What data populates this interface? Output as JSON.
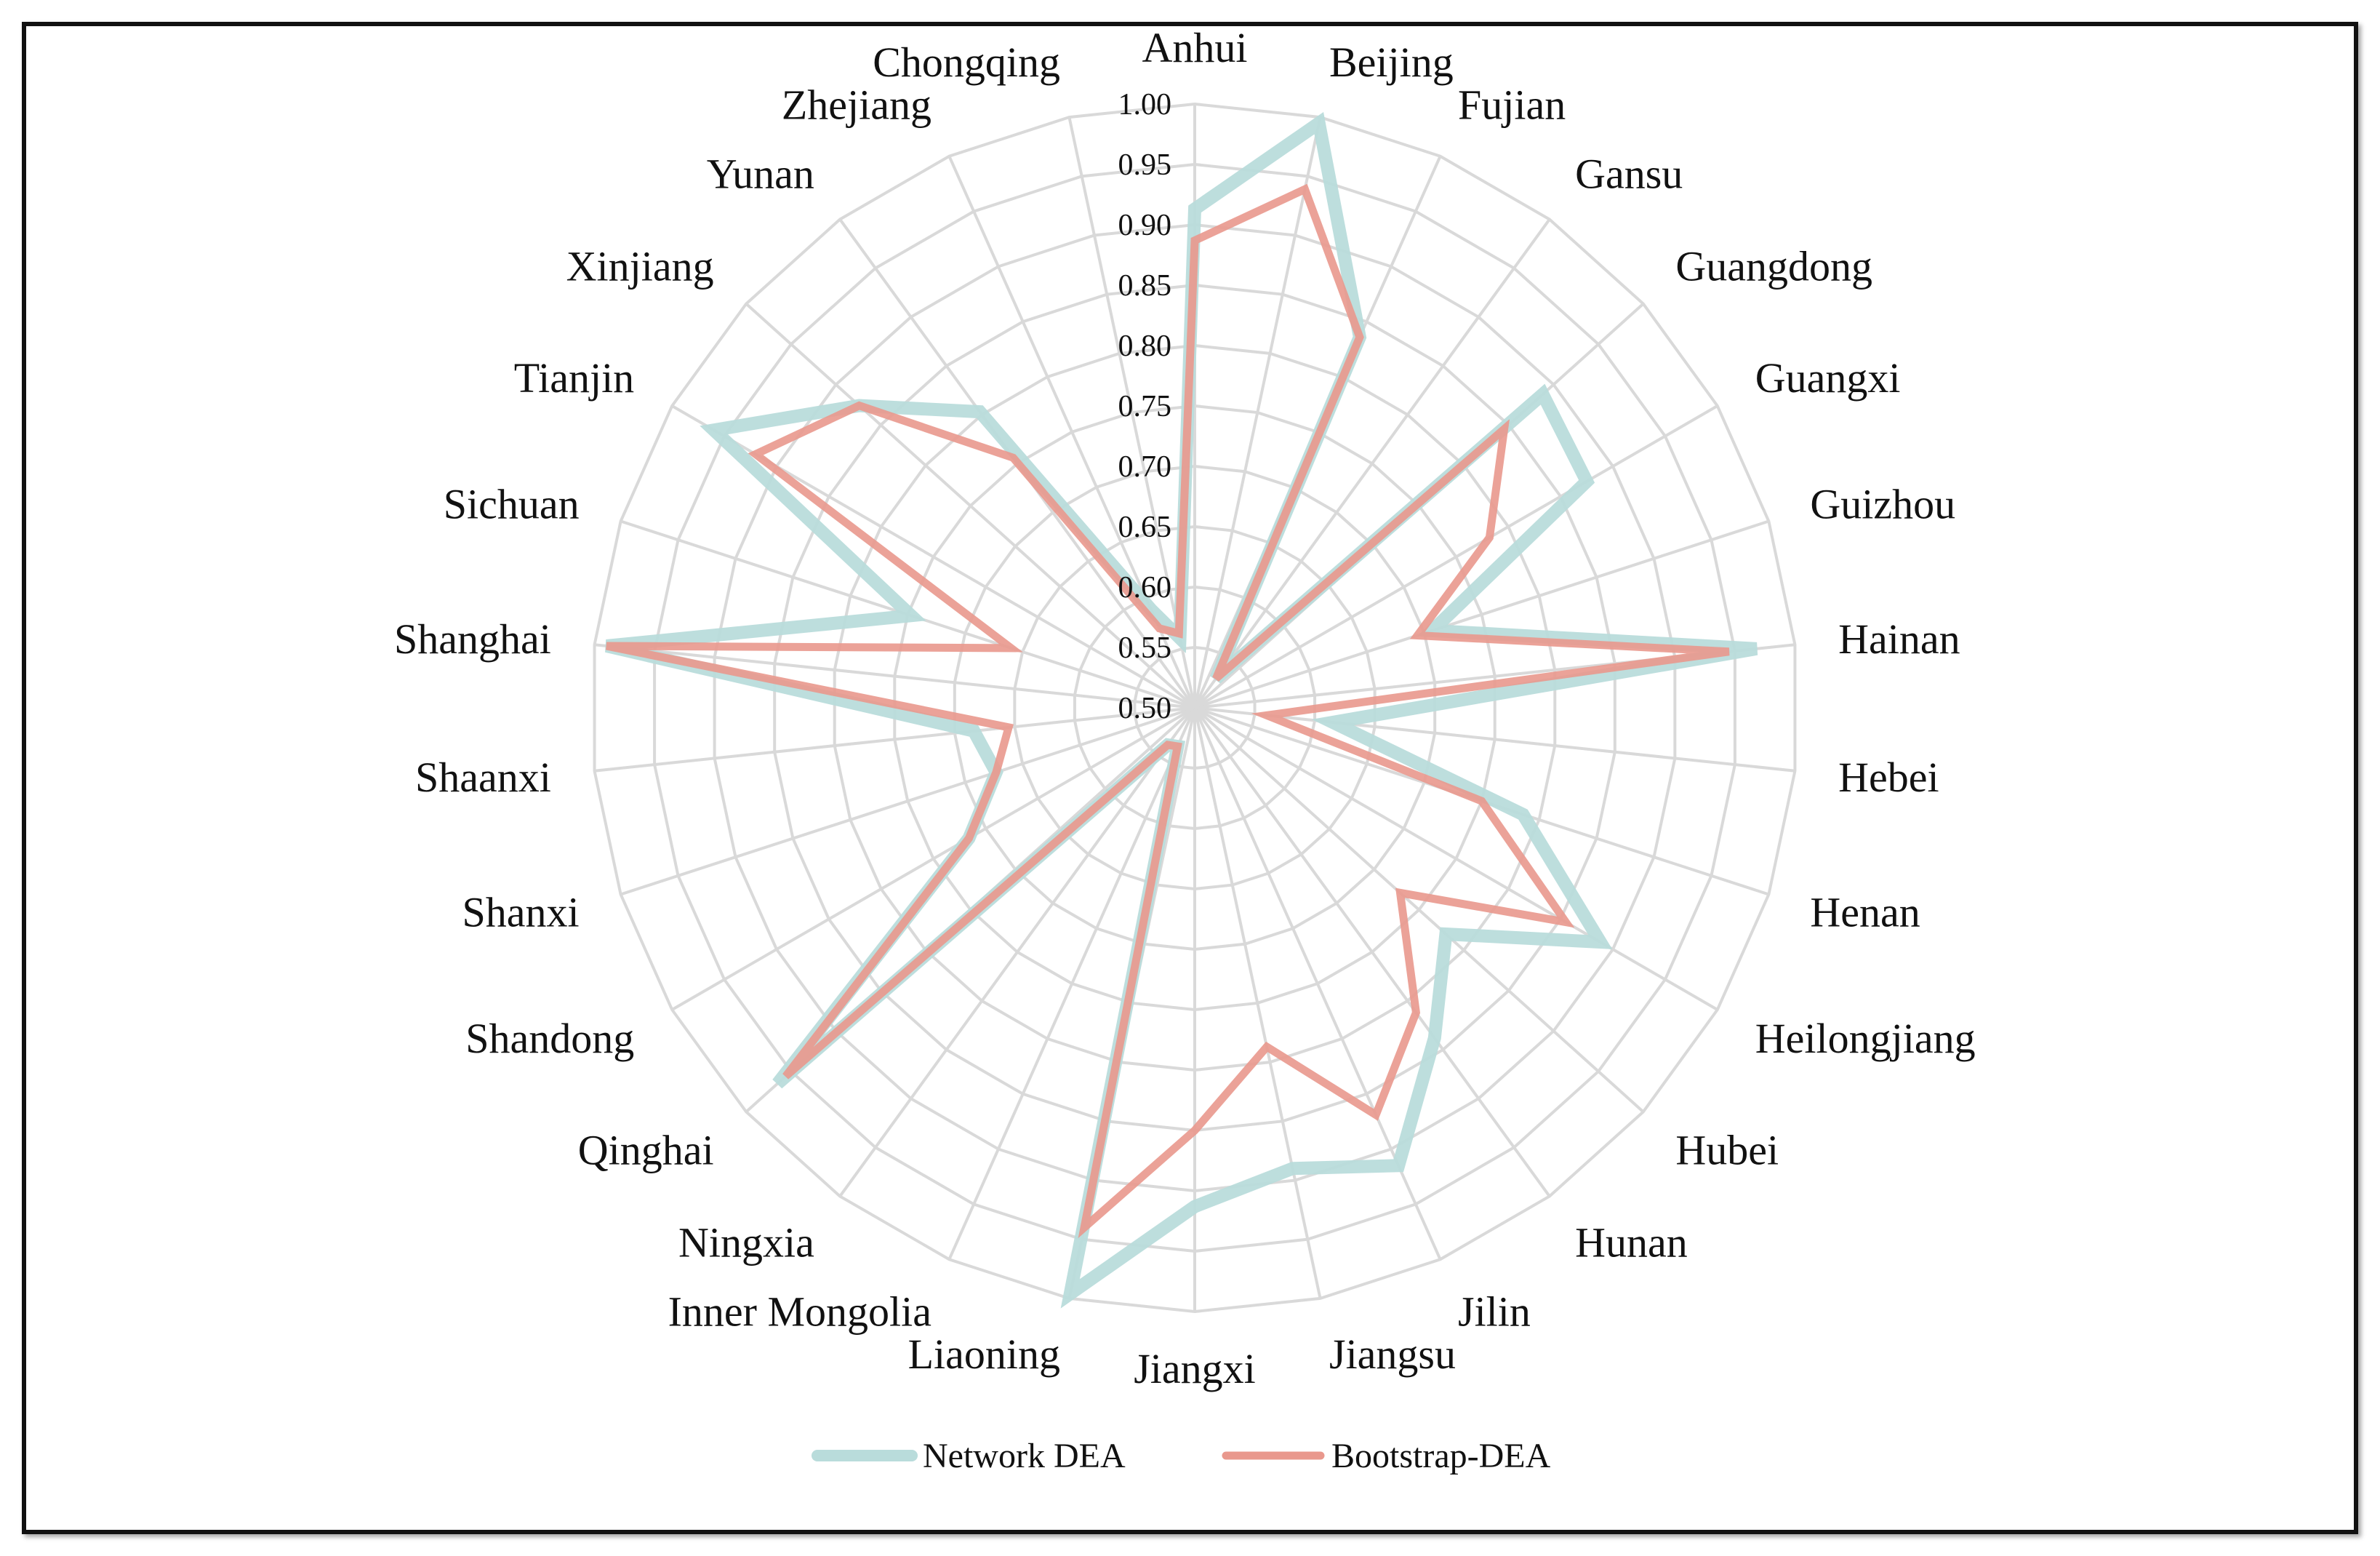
{
  "chart_data": {
    "type": "radar",
    "categories": [
      "Anhui",
      "Beijing",
      "Fujian",
      "Gansu",
      "Guangdong",
      "Guangxi",
      "Guizhou",
      "Hainan",
      "Hebei",
      "Henan",
      "Heilongjiang",
      "Hubei",
      "Hunan",
      "Jilin",
      "Jiangsu",
      "Jiangxi",
      "Liaoning",
      "Inner Mongolia",
      "Ningxia",
      "Qinghai",
      "Shandong",
      "Shanxi",
      "Shaanxi",
      "Shanghai",
      "Sichuan",
      "Tianjin",
      "Xinjiang",
      "Yunan",
      "Zhejiang",
      "Chongqing"
    ],
    "rlim": [
      0.5,
      1.0
    ],
    "ticks": [
      "0.50",
      "0.55",
      "0.60",
      "0.65",
      "0.70",
      "0.75",
      "0.80",
      "0.85",
      "0.90",
      "0.95",
      "1.00"
    ],
    "tick_values": [
      0.5,
      0.55,
      0.6,
      0.65,
      0.7,
      0.75,
      0.8,
      0.85,
      0.9,
      0.95,
      1.0
    ],
    "series": [
      {
        "name": "Network DEA",
        "color": "#b9dcdb",
        "values": [
          0.913,
          0.995,
          0.836,
          0.53,
          0.888,
          0.875,
          0.707,
          0.968,
          0.615,
          0.786,
          0.888,
          0.78,
          0.838,
          0.915,
          0.89,
          0.913,
          0.996,
          0.535,
          0.538,
          0.965,
          0.716,
          0.673,
          0.684,
          0.99,
          0.747,
          0.96,
          0.874,
          0.803,
          0.589,
          0.559
        ]
      },
      {
        "name": "Bootstrap-DEA",
        "color": "#e9988d",
        "values": [
          0.887,
          0.939,
          0.836,
          0.53,
          0.845,
          0.782,
          0.694,
          0.945,
          0.56,
          0.75,
          0.855,
          0.729,
          0.812,
          0.869,
          0.787,
          0.85,
          0.94,
          0.535,
          0.538,
          0.956,
          0.716,
          0.673,
          0.655,
          0.99,
          0.66,
          0.92,
          0.874,
          0.756,
          0.572,
          0.563
        ]
      }
    ],
    "grid": true,
    "legend_position": "bottom"
  }
}
